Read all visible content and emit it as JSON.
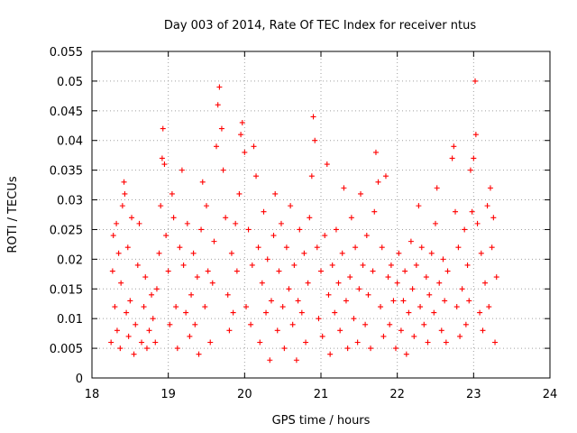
{
  "chart_data": {
    "type": "scatter",
    "title": "Day 003 of 2014, Rate Of TEC Index for receiver ntus",
    "xlabel": "GPS time / hours",
    "ylabel": "ROTI / TECUs",
    "xlim": [
      18,
      24
    ],
    "ylim": [
      0,
      0.055
    ],
    "x_ticks": [
      18,
      19,
      20,
      21,
      22,
      23,
      24
    ],
    "x_tick_labels": [
      "18",
      "19",
      "20",
      "21",
      "22",
      "23",
      "24"
    ],
    "y_ticks": [
      0,
      0.005,
      0.01,
      0.015,
      0.02,
      0.025,
      0.03,
      0.035,
      0.04,
      0.045,
      0.05,
      0.055
    ],
    "y_tick_labels": [
      "0",
      "0.005",
      "0.01",
      "0.015",
      "0.02",
      "0.025",
      "0.03",
      "0.035",
      "0.04",
      "0.045",
      "0.05",
      "0.055"
    ],
    "grid": true,
    "marker": "+",
    "color": "#ff0000",
    "series": [
      {
        "name": "ROTI",
        "points": [
          [
            18.25,
            0.006
          ],
          [
            18.27,
            0.018
          ],
          [
            18.28,
            0.024
          ],
          [
            18.3,
            0.012
          ],
          [
            18.32,
            0.026
          ],
          [
            18.33,
            0.008
          ],
          [
            18.35,
            0.021
          ],
          [
            18.37,
            0.005
          ],
          [
            18.38,
            0.016
          ],
          [
            18.4,
            0.029
          ],
          [
            18.42,
            0.033
          ],
          [
            18.43,
            0.031
          ],
          [
            18.45,
            0.011
          ],
          [
            18.47,
            0.022
          ],
          [
            18.48,
            0.007
          ],
          [
            18.5,
            0.013
          ],
          [
            18.52,
            0.027
          ],
          [
            18.55,
            0.004
          ],
          [
            18.57,
            0.009
          ],
          [
            18.6,
            0.019
          ],
          [
            18.62,
            0.026
          ],
          [
            18.65,
            0.006
          ],
          [
            18.68,
            0.012
          ],
          [
            18.7,
            0.017
          ],
          [
            18.72,
            0.005
          ],
          [
            18.75,
            0.008
          ],
          [
            18.78,
            0.014
          ],
          [
            18.8,
            0.01
          ],
          [
            18.83,
            0.006
          ],
          [
            18.85,
            0.015
          ],
          [
            18.88,
            0.021
          ],
          [
            18.9,
            0.029
          ],
          [
            18.92,
            0.037
          ],
          [
            18.93,
            0.042
          ],
          [
            18.95,
            0.036
          ],
          [
            18.97,
            0.024
          ],
          [
            19.0,
            0.018
          ],
          [
            19.02,
            0.009
          ],
          [
            19.05,
            0.031
          ],
          [
            19.07,
            0.027
          ],
          [
            19.1,
            0.012
          ],
          [
            19.12,
            0.005
          ],
          [
            19.15,
            0.022
          ],
          [
            19.18,
            0.035
          ],
          [
            19.2,
            0.019
          ],
          [
            19.23,
            0.011
          ],
          [
            19.25,
            0.026
          ],
          [
            19.28,
            0.007
          ],
          [
            19.3,
            0.014
          ],
          [
            19.33,
            0.021
          ],
          [
            19.35,
            0.009
          ],
          [
            19.38,
            0.017
          ],
          [
            19.4,
            0.004
          ],
          [
            19.43,
            0.025
          ],
          [
            19.45,
            0.033
          ],
          [
            19.48,
            0.012
          ],
          [
            19.5,
            0.029
          ],
          [
            19.52,
            0.018
          ],
          [
            19.55,
            0.006
          ],
          [
            19.58,
            0.016
          ],
          [
            19.6,
            0.023
          ],
          [
            19.63,
            0.039
          ],
          [
            19.65,
            0.046
          ],
          [
            19.67,
            0.049
          ],
          [
            19.7,
            0.042
          ],
          [
            19.72,
            0.035
          ],
          [
            19.75,
            0.027
          ],
          [
            19.78,
            0.014
          ],
          [
            19.8,
            0.008
          ],
          [
            19.83,
            0.021
          ],
          [
            19.85,
            0.011
          ],
          [
            19.88,
            0.026
          ],
          [
            19.9,
            0.018
          ],
          [
            19.93,
            0.031
          ],
          [
            19.95,
            0.041
          ],
          [
            19.97,
            0.043
          ],
          [
            20.0,
            0.038
          ],
          [
            20.02,
            0.012
          ],
          [
            20.05,
            0.025
          ],
          [
            20.08,
            0.009
          ],
          [
            20.1,
            0.019
          ],
          [
            20.12,
            0.039
          ],
          [
            20.15,
            0.034
          ],
          [
            20.18,
            0.022
          ],
          [
            20.2,
            0.006
          ],
          [
            20.23,
            0.016
          ],
          [
            20.25,
            0.028
          ],
          [
            20.28,
            0.011
          ],
          [
            20.3,
            0.02
          ],
          [
            20.33,
            0.003
          ],
          [
            20.35,
            0.013
          ],
          [
            20.38,
            0.024
          ],
          [
            20.4,
            0.031
          ],
          [
            20.43,
            0.008
          ],
          [
            20.45,
            0.018
          ],
          [
            20.48,
            0.026
          ],
          [
            20.5,
            0.012
          ],
          [
            20.52,
            0.005
          ],
          [
            20.55,
            0.022
          ],
          [
            20.58,
            0.015
          ],
          [
            20.6,
            0.029
          ],
          [
            20.63,
            0.009
          ],
          [
            20.65,
            0.019
          ],
          [
            20.68,
            0.003
          ],
          [
            20.7,
            0.013
          ],
          [
            20.72,
            0.025
          ],
          [
            20.75,
            0.011
          ],
          [
            20.78,
            0.021
          ],
          [
            20.8,
            0.006
          ],
          [
            20.83,
            0.016
          ],
          [
            20.85,
            0.027
          ],
          [
            20.88,
            0.034
          ],
          [
            20.9,
            0.044
          ],
          [
            20.92,
            0.04
          ],
          [
            20.95,
            0.022
          ],
          [
            20.97,
            0.01
          ],
          [
            21.0,
            0.018
          ],
          [
            21.02,
            0.007
          ],
          [
            21.05,
            0.024
          ],
          [
            21.08,
            0.036
          ],
          [
            21.1,
            0.014
          ],
          [
            21.12,
            0.004
          ],
          [
            21.15,
            0.019
          ],
          [
            21.18,
            0.011
          ],
          [
            21.2,
            0.025
          ],
          [
            21.23,
            0.016
          ],
          [
            21.25,
            0.008
          ],
          [
            21.28,
            0.021
          ],
          [
            21.3,
            0.032
          ],
          [
            21.33,
            0.013
          ],
          [
            21.35,
            0.005
          ],
          [
            21.38,
            0.017
          ],
          [
            21.4,
            0.027
          ],
          [
            21.43,
            0.01
          ],
          [
            21.45,
            0.022
          ],
          [
            21.48,
            0.006
          ],
          [
            21.5,
            0.015
          ],
          [
            21.52,
            0.031
          ],
          [
            21.55,
            0.019
          ],
          [
            21.58,
            0.009
          ],
          [
            21.6,
            0.024
          ],
          [
            21.62,
            0.014
          ],
          [
            21.65,
            0.005
          ],
          [
            21.68,
            0.018
          ],
          [
            21.7,
            0.028
          ],
          [
            21.72,
            0.038
          ],
          [
            21.75,
            0.033
          ],
          [
            21.78,
            0.012
          ],
          [
            21.8,
            0.022
          ],
          [
            21.82,
            0.007
          ],
          [
            21.85,
            0.034
          ],
          [
            21.88,
            0.017
          ],
          [
            21.9,
            0.009
          ],
          [
            21.92,
            0.019
          ],
          [
            21.95,
            0.013
          ],
          [
            21.98,
            0.005
          ],
          [
            22.0,
            0.016
          ],
          [
            22.02,
            0.021
          ],
          [
            22.05,
            0.008
          ],
          [
            22.08,
            0.013
          ],
          [
            22.1,
            0.018
          ],
          [
            22.12,
            0.004
          ],
          [
            22.15,
            0.011
          ],
          [
            22.18,
            0.023
          ],
          [
            22.2,
            0.015
          ],
          [
            22.22,
            0.007
          ],
          [
            22.25,
            0.019
          ],
          [
            22.28,
            0.029
          ],
          [
            22.3,
            0.012
          ],
          [
            22.32,
            0.022
          ],
          [
            22.35,
            0.009
          ],
          [
            22.38,
            0.017
          ],
          [
            22.4,
            0.006
          ],
          [
            22.42,
            0.014
          ],
          [
            22.45,
            0.021
          ],
          [
            22.48,
            0.011
          ],
          [
            22.5,
            0.026
          ],
          [
            22.52,
            0.032
          ],
          [
            22.55,
            0.016
          ],
          [
            22.58,
            0.008
          ],
          [
            22.6,
            0.02
          ],
          [
            22.62,
            0.013
          ],
          [
            22.64,
            0.006
          ],
          [
            22.66,
            0.018
          ],
          [
            22.72,
            0.037
          ],
          [
            22.74,
            0.039
          ],
          [
            22.76,
            0.028
          ],
          [
            22.78,
            0.012
          ],
          [
            22.8,
            0.022
          ],
          [
            22.82,
            0.007
          ],
          [
            22.85,
            0.015
          ],
          [
            22.88,
            0.025
          ],
          [
            22.9,
            0.009
          ],
          [
            22.92,
            0.019
          ],
          [
            22.94,
            0.013
          ],
          [
            22.96,
            0.035
          ],
          [
            22.98,
            0.028
          ],
          [
            23.0,
            0.037
          ],
          [
            23.02,
            0.05
          ],
          [
            23.03,
            0.041
          ],
          [
            23.05,
            0.026
          ],
          [
            23.08,
            0.011
          ],
          [
            23.1,
            0.021
          ],
          [
            23.12,
            0.008
          ],
          [
            23.15,
            0.016
          ],
          [
            23.18,
            0.029
          ],
          [
            23.2,
            0.012
          ],
          [
            23.22,
            0.032
          ],
          [
            23.24,
            0.022
          ],
          [
            23.26,
            0.027
          ],
          [
            23.28,
            0.006
          ],
          [
            23.3,
            0.017
          ]
        ]
      }
    ]
  }
}
